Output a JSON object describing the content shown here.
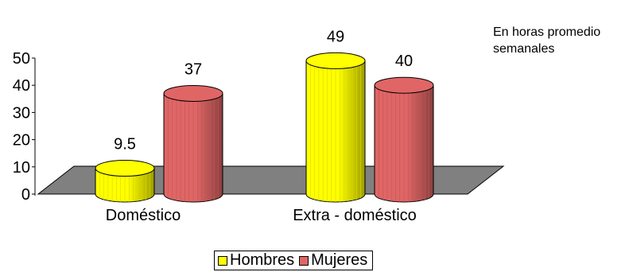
{
  "chart_data": {
    "type": "bar",
    "style": "3d-cylinder",
    "categories": [
      "Doméstico",
      "Extra - doméstico"
    ],
    "series": [
      {
        "name": "Hombres",
        "values": [
          9.5,
          49
        ],
        "labels": [
          "9.5",
          "49"
        ],
        "color": "#ffff00"
      },
      {
        "name": "Mujeres",
        "values": [
          37,
          40
        ],
        "labels": [
          "37",
          "40"
        ],
        "color": "#e06666"
      }
    ],
    "y_ticks": [
      "0",
      "10",
      "20",
      "30",
      "40",
      "50"
    ],
    "ylim": [
      0,
      50
    ],
    "floor_color": "#808080",
    "grid": false,
    "legend_position": "bottom"
  },
  "annotation": {
    "line1": "En horas promedio",
    "line2": "semanales"
  }
}
